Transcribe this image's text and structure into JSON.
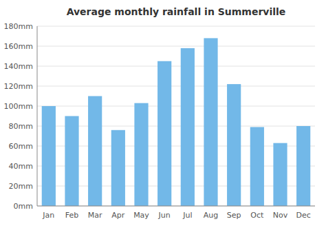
{
  "chart_data": {
    "type": "bar",
    "title": "Average monthly rainfall in Summerville",
    "categories": [
      "Jan",
      "Feb",
      "Mar",
      "Apr",
      "May",
      "Jun",
      "Jul",
      "Aug",
      "Sep",
      "Oct",
      "Nov",
      "Dec"
    ],
    "values": [
      100,
      90,
      110,
      76,
      103,
      145,
      158,
      168,
      122,
      79,
      63,
      80
    ],
    "color": "#72b8e8",
    "ylim": [
      0,
      180
    ],
    "yticks": [
      {
        "value": 0,
        "label": "0mm"
      },
      {
        "value": 20,
        "label": "20mm"
      },
      {
        "value": 40,
        "label": "40mm"
      },
      {
        "value": 60,
        "label": "60mm"
      },
      {
        "value": 80,
        "label": "80mm"
      },
      {
        "value": 100,
        "label": "100mm"
      },
      {
        "value": 120,
        "label": "120mm"
      },
      {
        "value": 140,
        "label": "140mm"
      },
      {
        "value": 160,
        "label": "160mm"
      },
      {
        "value": 180,
        "label": "180mm"
      }
    ],
    "grid": true
  }
}
